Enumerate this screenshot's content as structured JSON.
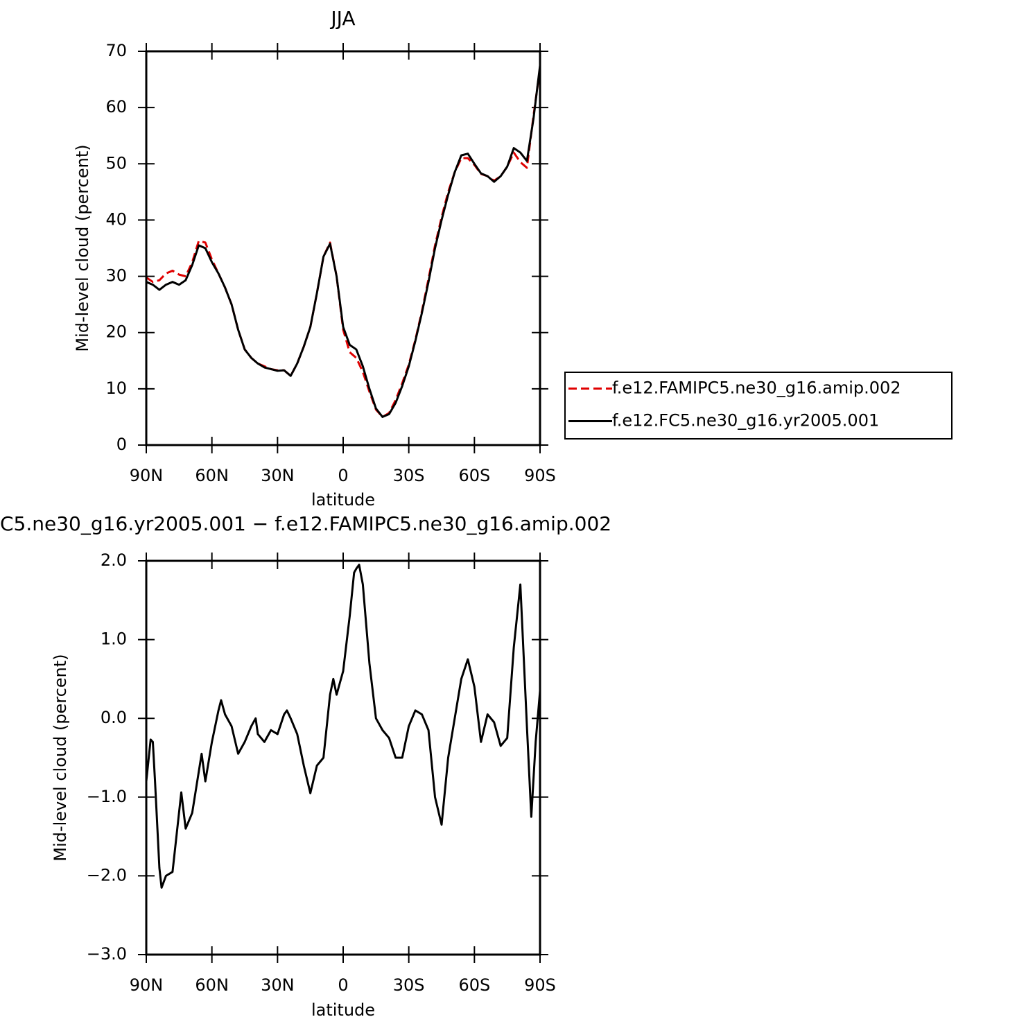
{
  "chart_data": [
    {
      "type": "line",
      "title": "JJA",
      "xlabel": "latitude",
      "ylabel": "Mid-level cloud (percent)",
      "x": [
        90,
        87,
        84,
        81,
        78,
        75,
        72,
        69,
        66,
        63,
        60,
        57,
        54,
        51,
        48,
        45,
        42,
        39,
        36,
        33,
        30,
        27,
        24,
        21,
        18,
        15,
        12,
        9,
        6,
        3,
        0,
        -3,
        -6,
        -9,
        -12,
        -15,
        -18,
        -21,
        -24,
        -27,
        -30,
        -33,
        -36,
        -39,
        -42,
        -45,
        -48,
        -51,
        -54,
        -57,
        -60,
        -63,
        -66,
        -69,
        -72,
        -75,
        -78,
        -81,
        -84,
        -87,
        -90
      ],
      "xlim": [
        90,
        -90
      ],
      "xticks": [
        {
          "value": 90,
          "label": "90N"
        },
        {
          "value": 60,
          "label": "60N"
        },
        {
          "value": 30,
          "label": "30N"
        },
        0,
        {
          "value": -30,
          "label": "30S"
        },
        {
          "value": -60,
          "label": "60S"
        },
        {
          "value": -90,
          "label": "90S"
        }
      ],
      "ylim": [
        0,
        70
      ],
      "yticks": [
        0,
        10,
        20,
        30,
        40,
        50,
        60,
        70
      ],
      "legend": "right",
      "series": [
        {
          "name": "f.e12.FAMIPC5.ne30_g16.amip.002",
          "color": "#e00000",
          "style": "dashed",
          "values": [
            29.8,
            29,
            29.3,
            30.5,
            31,
            30.3,
            30,
            32.5,
            36.3,
            36,
            33,
            30.5,
            28,
            25,
            20.5,
            17,
            15.5,
            14.5,
            14,
            13.5,
            13.3,
            13.3,
            12.3,
            14.5,
            17.5,
            21,
            27,
            33.5,
            36,
            30,
            20.5,
            16.5,
            15.5,
            13,
            9.5,
            6.3,
            5,
            5.7,
            8,
            11,
            14.3,
            18.7,
            23.8,
            29.5,
            35.5,
            40.5,
            45,
            48.5,
            51,
            51,
            49.8,
            48.2,
            47.8,
            47,
            47.8,
            49.5,
            52,
            50.3,
            49.3,
            58.5,
            67
          ]
        },
        {
          "name": "f.e12.FC5.ne30_g16.yr2005.001",
          "color": "#000000",
          "style": "solid",
          "values": [
            29,
            28.5,
            27.6,
            28.5,
            29,
            28.5,
            29.3,
            32,
            35.5,
            35,
            32.5,
            30.5,
            28,
            25,
            20.5,
            17,
            15.5,
            14.5,
            13.8,
            13.5,
            13.2,
            13.3,
            12.3,
            14.5,
            17.5,
            21,
            27,
            33.5,
            35.8,
            30,
            21,
            17.8,
            17,
            14,
            10,
            6.5,
            5,
            5.5,
            7.5,
            10.5,
            14,
            18.5,
            23.5,
            29,
            35,
            40,
            44.5,
            48.5,
            51.5,
            51.8,
            50,
            48.3,
            47.8,
            46.8,
            47.8,
            49.5,
            52.8,
            52,
            50.5,
            58,
            67.5
          ]
        }
      ]
    },
    {
      "type": "line",
      "title": "C5.ne30_g16.yr2005.001 − f.e12.FAMIPC5.ne30_g16.amip.002",
      "xlabel": "latitude",
      "ylabel": "Mid-level cloud (percent)",
      "x": [
        90,
        88,
        87,
        86,
        84,
        83,
        81,
        78,
        74,
        72,
        69,
        64.7,
        63,
        60,
        57,
        55.8,
        54,
        51,
        48,
        45,
        42,
        40,
        39,
        36,
        33,
        30,
        27,
        25.7,
        24,
        21,
        18,
        15,
        12,
        9,
        6,
        4.5,
        3,
        0,
        -3,
        -5,
        -6,
        -7.3,
        -9,
        -12,
        -15,
        -18,
        -21,
        -24,
        -27,
        -30,
        -33,
        -36,
        -39,
        -42,
        -45,
        -48,
        -51,
        -54,
        -57,
        -60,
        -63,
        -66,
        -69,
        -72,
        -75,
        -78,
        -81,
        -84,
        -86,
        -88,
        -90
      ],
      "xlim": [
        90,
        -90
      ],
      "xticks": [
        {
          "value": 90,
          "label": "90N"
        },
        {
          "value": 60,
          "label": "60N"
        },
        {
          "value": 30,
          "label": "30N"
        },
        0,
        {
          "value": -30,
          "label": "30S"
        },
        {
          "value": -60,
          "label": "60S"
        },
        {
          "value": -90,
          "label": "90S"
        }
      ],
      "ylim": [
        -3,
        2
      ],
      "yticks": [
        {
          "value": -3,
          "label": "−3.0"
        },
        {
          "value": -2,
          "label": "−2.0"
        },
        {
          "value": -1,
          "label": "−1.0"
        },
        {
          "value": 0,
          "label": "0.0"
        },
        {
          "value": 1,
          "label": "1.0"
        },
        {
          "value": 2,
          "label": "2.0"
        }
      ],
      "series": [
        {
          "color": "#000000",
          "style": "solid",
          "values": [
            -0.8,
            -0.27,
            -0.3,
            -0.8,
            -1.9,
            -2.15,
            -2.0,
            -1.95,
            -0.94,
            -1.4,
            -1.2,
            -0.45,
            -0.8,
            -0.3,
            0.1,
            0.23,
            0.05,
            -0.1,
            -0.45,
            -0.3,
            -0.1,
            0,
            -0.2,
            -0.3,
            -0.15,
            -0.2,
            0.05,
            0.1,
            0,
            -0.2,
            -0.6,
            -0.95,
            -0.6,
            -0.5,
            0.3,
            0.5,
            0.3,
            0.6,
            1.3,
            1.85,
            1.9,
            1.95,
            1.7,
            0.7,
            0,
            -0.15,
            -0.25,
            -0.5,
            -0.5,
            -0.1,
            0.1,
            0.05,
            -0.15,
            -1.0,
            -1.35,
            -0.5,
            0,
            0.5,
            0.75,
            0.4,
            -0.3,
            0.05,
            -0.05,
            -0.35,
            -0.25,
            0.9,
            1.7,
            -0.1,
            -1.25,
            -0.3,
            0.35
          ]
        }
      ]
    }
  ]
}
